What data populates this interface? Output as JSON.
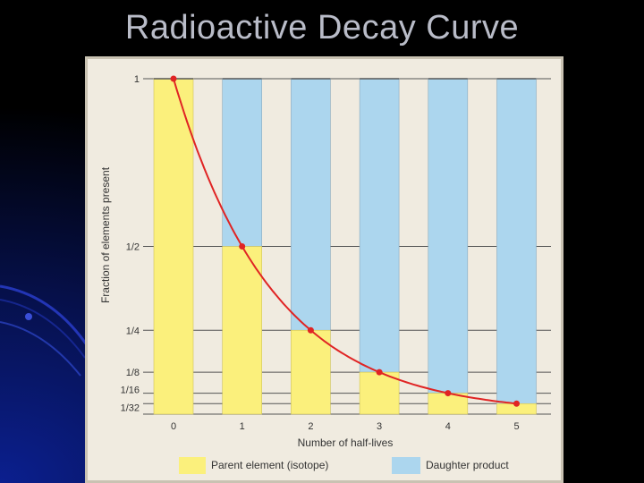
{
  "slide": {
    "title": "Radioactive Decay Curve"
  },
  "colors": {
    "parent": "#fbf07c",
    "daughter": "#acd6ee",
    "curve": "#e02424",
    "background": "#f0ebe0"
  },
  "chart_data": {
    "type": "bar",
    "title": "",
    "xlabel": "Number of half-lives",
    "ylabel": "Fraction of elements present",
    "categories": [
      "0",
      "1",
      "2",
      "3",
      "4",
      "5"
    ],
    "series": [
      {
        "name": "Parent element (isotope)",
        "values": [
          1,
          0.5,
          0.25,
          0.125,
          0.0625,
          0.03125
        ]
      },
      {
        "name": "Daughter product",
        "values": [
          0,
          0.5,
          0.75,
          0.875,
          0.9375,
          0.96875
        ]
      }
    ],
    "stacked": true,
    "curve": {
      "x": [
        0,
        1,
        2,
        3,
        4,
        5
      ],
      "y": [
        1,
        0.5,
        0.25,
        0.125,
        0.0625,
        0.03125
      ]
    },
    "y_ticks": [
      {
        "value": 1,
        "label": "1"
      },
      {
        "value": 0.5,
        "label": "1/2"
      },
      {
        "value": 0.25,
        "label": "1/4"
      },
      {
        "value": 0.125,
        "label": "1/8"
      },
      {
        "value": 0.0625,
        "label": "1/16"
      },
      {
        "value": 0.03125,
        "label": "1/32"
      }
    ],
    "ylim": [
      0,
      1
    ],
    "grid": true,
    "legend": {
      "position": "bottom",
      "items": [
        {
          "label": "Parent element (isotope)"
        },
        {
          "label": "Daughter product"
        }
      ]
    }
  }
}
